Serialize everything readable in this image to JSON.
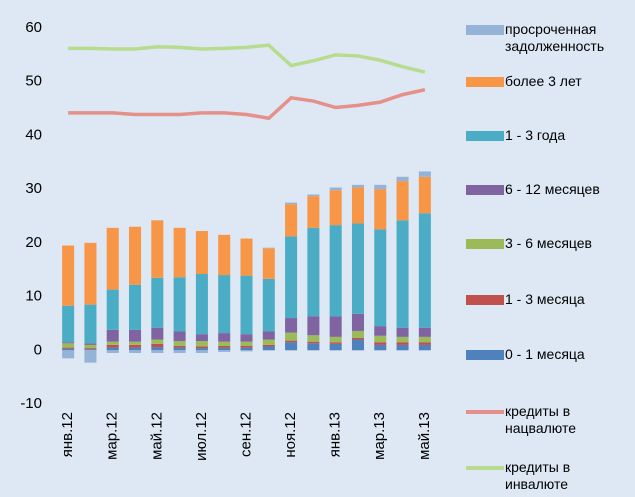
{
  "chart_data": {
    "type": "bar",
    "categories": [
      "янв.12",
      null,
      "мар.12",
      null,
      "май.12",
      null,
      "июл.12",
      null,
      "сен.12",
      null,
      "ноя.12",
      null,
      "янв.13",
      null,
      "мар.13",
      null,
      "май.13"
    ],
    "series": [
      {
        "name": "просроченная задолженность",
        "color": "#95b3d7",
        "values": [
          -1.5,
          -2.3,
          -0.5,
          -0.5,
          -0.5,
          -0.5,
          -0.5,
          -0.3,
          -0.2,
          0.1,
          0.3,
          0.3,
          0.5,
          0.5,
          0.8,
          0.8,
          1.0
        ]
      },
      {
        "name": "более 3 лет",
        "color": "#f79646",
        "values": [
          11.2,
          11.5,
          11.5,
          10.8,
          10.7,
          9.2,
          8,
          7.5,
          6.9,
          5.7,
          6,
          5.9,
          6.5,
          6.7,
          7.5,
          7.3,
          6.8
        ]
      },
      {
        "name": "1 - 3 года",
        "color": "#4bacc6",
        "values": [
          6.8,
          7.2,
          7.5,
          8.4,
          9.3,
          10.1,
          11.2,
          10.8,
          10.9,
          9.8,
          15.2,
          16.5,
          17,
          16.8,
          18,
          20,
          21.3
        ]
      },
      {
        "name": "6 - 12 месяцев",
        "color": "#8064a2",
        "values": [
          0.2,
          0.3,
          2.2,
          2.2,
          2.2,
          1.8,
          1.3,
          1.6,
          1.4,
          1.5,
          2.7,
          3.5,
          3.8,
          3.2,
          1.8,
          1.7,
          1.7
        ]
      },
      {
        "name": "3 - 6 месяцев",
        "color": "#9bbb59",
        "values": [
          0.8,
          0.6,
          0.6,
          0.6,
          0.8,
          0.9,
          1,
          0.8,
          0.8,
          1,
          1.5,
          1.2,
          1,
          1.3,
          1.2,
          1,
          1
        ]
      },
      {
        "name": "1 - 3 месяца",
        "color": "#c0504d",
        "values": [
          0.2,
          0.2,
          0.5,
          0.5,
          0.6,
          0.3,
          0.3,
          0.3,
          0.3,
          0.3,
          0.3,
          0.3,
          0.3,
          0.3,
          0.5,
          0.5,
          0.5
        ]
      },
      {
        "name": "0 - 1 месяца",
        "color": "#4f81bd",
        "values": [
          0.3,
          0.2,
          0.5,
          0.5,
          0.6,
          0.5,
          0.4,
          0.5,
          0.5,
          0.7,
          1.5,
          1.3,
          1.2,
          2,
          1,
          1,
          1
        ]
      },
      {
        "name": "кредиты в нацвалюте",
        "color": "#e6908a",
        "type": "line",
        "values": [
          44.2,
          44.2,
          44.2,
          43.9,
          43.9,
          43.9,
          44.2,
          44.2,
          43.9,
          43.2,
          47,
          46.4,
          45.2,
          45.6,
          46.2,
          47.6,
          48.5
        ]
      },
      {
        "name": "кредиты в инвалюте",
        "color": "#b8dc8e",
        "type": "line",
        "values": [
          56.2,
          56.2,
          56.1,
          56.1,
          56.5,
          56.4,
          56.1,
          56.2,
          56.4,
          56.8,
          53,
          53.9,
          55,
          54.8,
          54,
          52.8,
          51.8
        ]
      }
    ],
    "ylim": [
      -10,
      60
    ],
    "yticks": [
      -10,
      0,
      10,
      20,
      30,
      40,
      50,
      60
    ],
    "grid": false
  }
}
